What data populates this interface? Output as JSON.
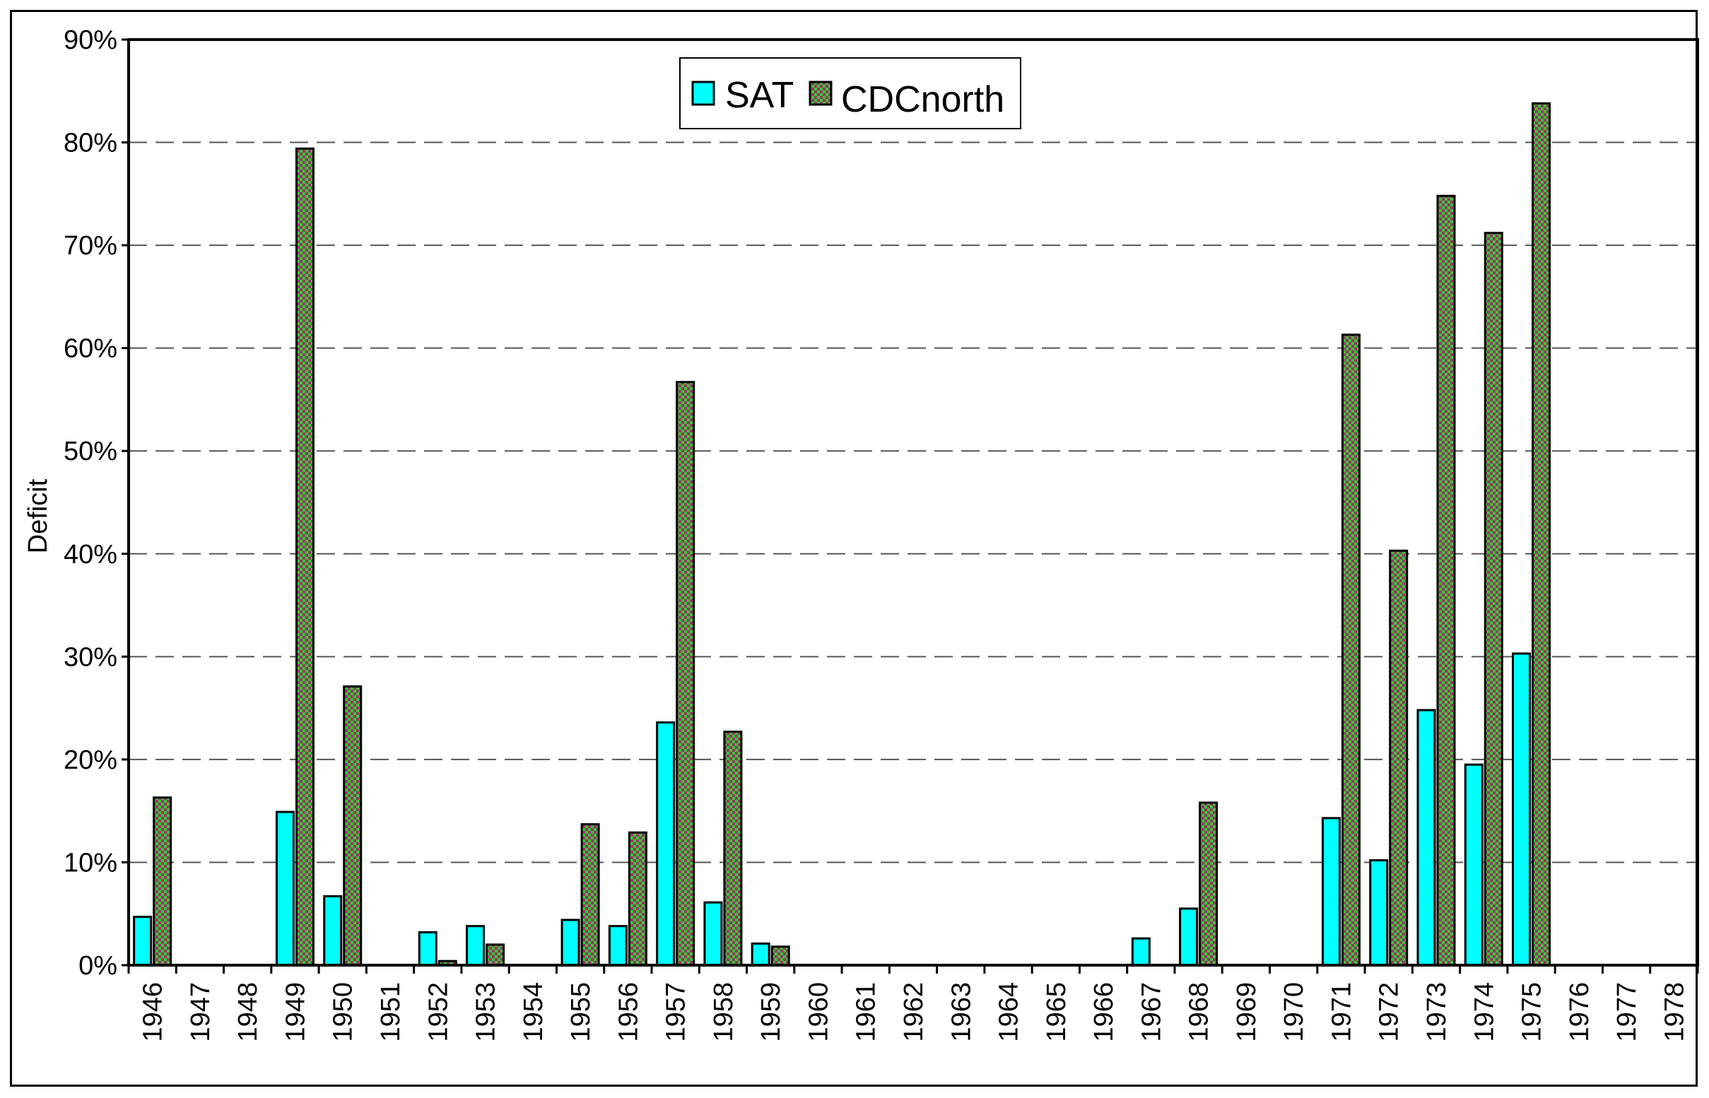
{
  "chart_data": {
    "type": "bar",
    "ylabel": "Deficit",
    "xlabel": "",
    "title": "",
    "ylim": [
      0,
      90
    ],
    "yticks": [
      0,
      10,
      20,
      30,
      40,
      50,
      60,
      70,
      80,
      90
    ],
    "ytick_suffix": "%",
    "grid": "horizontal-dashed",
    "legend_position": "top-center",
    "categories": [
      "1946",
      "1947",
      "1948",
      "1949",
      "1950",
      "1951",
      "1952",
      "1953",
      "1954",
      "1955",
      "1956",
      "1957",
      "1958",
      "1959",
      "1960",
      "1961",
      "1962",
      "1963",
      "1964",
      "1965",
      "1966",
      "1967",
      "1968",
      "1969",
      "1970",
      "1971",
      "1972",
      "1973",
      "1974",
      "1975",
      "1976",
      "1977",
      "1978"
    ],
    "series": [
      {
        "name": "SAT",
        "color": "#00ffff",
        "values": [
          4.7,
          0,
          0,
          14.9,
          6.7,
          0,
          3.2,
          3.8,
          0,
          4.4,
          3.8,
          23.6,
          6.1,
          2.1,
          0,
          0,
          0,
          0,
          0,
          0,
          0,
          2.6,
          5.5,
          0,
          0,
          14.3,
          10.2,
          24.8,
          19.5,
          30.3,
          0,
          0,
          0
        ]
      },
      {
        "name": "CDCnorth",
        "color": "#33cc33",
        "color2": "#993366",
        "values": [
          16.3,
          0,
          0,
          79.4,
          27.1,
          0,
          0.4,
          2.0,
          0,
          13.7,
          12.9,
          56.7,
          22.7,
          1.8,
          0,
          0,
          0,
          0,
          0,
          0,
          0,
          0,
          15.8,
          0,
          0,
          61.3,
          40.3,
          74.8,
          71.2,
          83.8,
          0,
          0,
          0
        ]
      }
    ]
  }
}
